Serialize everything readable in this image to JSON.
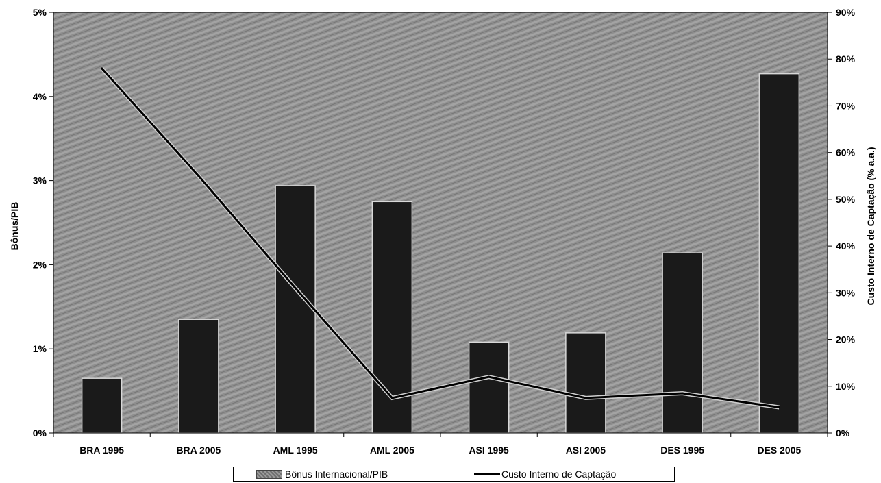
{
  "chart_data": {
    "type": "bar",
    "categories": [
      "BRA 1995",
      "BRA 2005",
      "AML 1995",
      "AML 2005",
      "ASI 1995",
      "ASI 2005",
      "DES 1995",
      "DES 2005"
    ],
    "series": [
      {
        "name": "Bônus Internacional/PIB",
        "type": "bar",
        "axis": "left",
        "values": [
          0.65,
          1.35,
          2.94,
          2.75,
          1.08,
          1.19,
          2.14,
          4.27
        ]
      },
      {
        "name": "Custo Interno de Captação",
        "type": "line",
        "axis": "right",
        "values": [
          78,
          55,
          31,
          7.5,
          12,
          7.5,
          8.5,
          5.5
        ]
      }
    ],
    "ylabel": "Bônus/PIB",
    "ylabel_right": "Custo Interno de Captação (% a.a.)",
    "ylim": [
      0,
      5
    ],
    "ylim_right": [
      0,
      90
    ],
    "yticks": [
      "0%",
      "1%",
      "2%",
      "3%",
      "4%",
      "5%"
    ],
    "yticks_right": [
      "0%",
      "10%",
      "20%",
      "30%",
      "40%",
      "50%",
      "60%",
      "70%",
      "80%",
      "90%"
    ],
    "legend_position": "bottom",
    "colors": {
      "bar": "#1a1a1a",
      "line": "#000000",
      "plot_background": "#8c8c8c"
    }
  }
}
